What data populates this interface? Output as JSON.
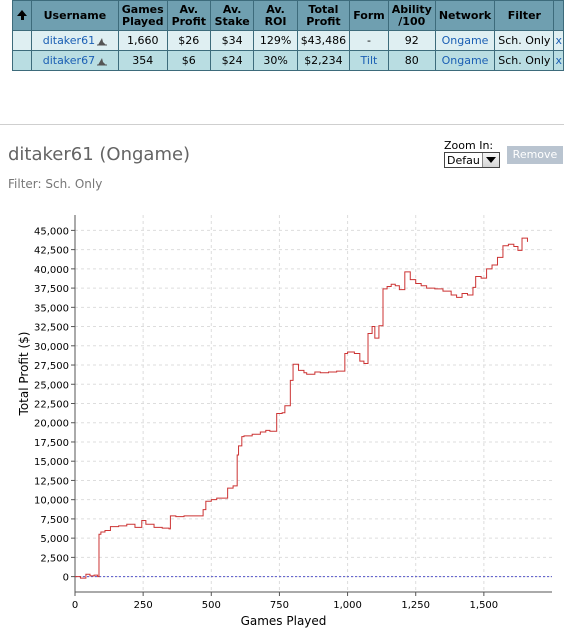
{
  "table": {
    "headers": [
      "Username",
      "Games Played",
      "Av. Profit",
      "Av. Stake",
      "Av. ROI",
      "Total Profit",
      "Form",
      "Ability /100",
      "Network",
      "Filter"
    ],
    "rows": [
      {
        "username": "ditaker61",
        "games": "1,660",
        "avg_profit": "$26",
        "avg_stake": "$34",
        "roi": "129%",
        "total_profit": "$43,486",
        "form": "-",
        "ability": "92",
        "network": "Ongame",
        "filter": "Sch. Only",
        "remove": "x"
      },
      {
        "username": "ditaker67",
        "games": "354",
        "avg_profit": "$6",
        "avg_stake": "$24",
        "roi": "30%",
        "total_profit": "$2,234",
        "form": "Tilt",
        "ability": "80",
        "network": "Ongame",
        "filter": "Sch. Only",
        "remove": "x"
      }
    ]
  },
  "section": {
    "title": "ditaker61 (Ongame)",
    "filter_line": "Filter: Sch. Only",
    "zoom_label": "Zoom In:",
    "zoom_value": "Defau",
    "remove_label": "Remove"
  },
  "colors": {
    "header_bg": "#6f9fb0",
    "row1_bg": "#dfeff2",
    "row2_bg": "#b9dde2",
    "line": "#cc3333",
    "zero_line": "#5555cc",
    "link": "#1b5fb4"
  },
  "chart_data": {
    "type": "line",
    "xlabel": "Games Played",
    "ylabel": "Total Profit ($)",
    "xlim": [
      0,
      1750
    ],
    "ylim": [
      -2000,
      47000
    ],
    "x_ticks": [
      0,
      250,
      500,
      750,
      1000,
      1250,
      1500
    ],
    "x_tick_labels": [
      "0",
      "250",
      "500",
      "750",
      "1,000",
      "1,250",
      "1,500"
    ],
    "y_ticks": [
      0,
      2500,
      5000,
      7500,
      10000,
      12500,
      15000,
      17500,
      20000,
      22500,
      25000,
      27500,
      30000,
      32500,
      35000,
      37500,
      40000,
      42500,
      45000
    ],
    "y_tick_labels": [
      "0",
      "2,500",
      "5,000",
      "7,500",
      "10,000",
      "12,500",
      "15,000",
      "17,500",
      "20,000",
      "22,500",
      "25,000",
      "27,500",
      "30,000",
      "32,500",
      "35,000",
      "37,500",
      "40,000",
      "42,500",
      "45,000"
    ],
    "grid": true,
    "series": [
      {
        "x": [
          0,
          20,
          40,
          55,
          70,
          83,
          88,
          95,
          110,
          130,
          160,
          190,
          220,
          245,
          260,
          290,
          320,
          345,
          350,
          370,
          400,
          430,
          470,
          480,
          500,
          520,
          540,
          560,
          580,
          595,
          600,
          612,
          620,
          650,
          680,
          700,
          715,
          740,
          760,
          770,
          790,
          800,
          820,
          840,
          850,
          880,
          900,
          930,
          960,
          990,
          1000,
          1025,
          1045,
          1060,
          1075,
          1090,
          1100,
          1115,
          1130,
          1145,
          1160,
          1175,
          1190,
          1210,
          1230,
          1250,
          1270,
          1290,
          1320,
          1350,
          1380,
          1400,
          1420,
          1440,
          1460,
          1470,
          1490,
          1510,
          1530,
          1550,
          1570,
          1590,
          1610,
          1625,
          1640,
          1660
        ],
        "y": [
          0,
          -200,
          300,
          100,
          200,
          0,
          5500,
          5800,
          6000,
          6500,
          6600,
          6800,
          6400,
          7300,
          6800,
          6400,
          6300,
          6200,
          7900,
          7800,
          7900,
          7900,
          8700,
          9800,
          10000,
          10200,
          10200,
          11500,
          11800,
          15800,
          17000,
          18200,
          18300,
          18500,
          18800,
          19000,
          18900,
          21200,
          21300,
          22200,
          25500,
          27600,
          26800,
          26500,
          26300,
          26600,
          26500,
          26600,
          26700,
          29000,
          29200,
          29000,
          28000,
          27700,
          31600,
          32500,
          31000,
          32600,
          37400,
          37700,
          38000,
          37800,
          37300,
          39600,
          38600,
          38100,
          37800,
          37500,
          37400,
          37100,
          36600,
          36300,
          36800,
          36600,
          37600,
          39000,
          38800,
          40000,
          40500,
          41500,
          43000,
          43200,
          42900,
          42400,
          44000,
          43500
        ]
      }
    ]
  }
}
